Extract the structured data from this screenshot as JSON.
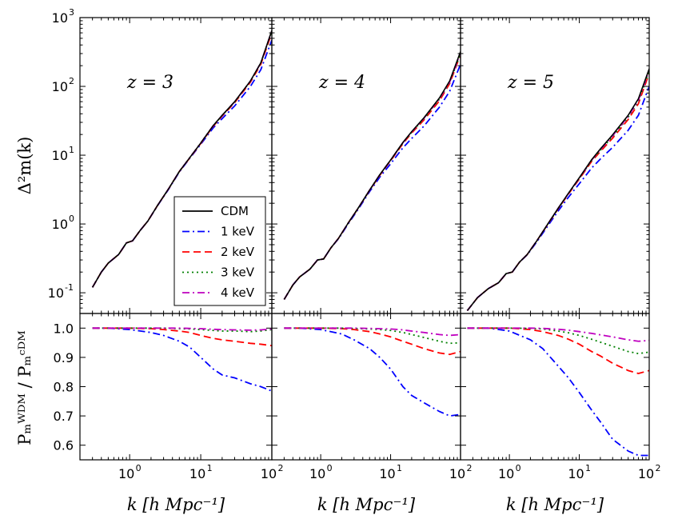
{
  "chart_data": {
    "type": "line",
    "legend_placement": "lower-right of first panel",
    "xlabel": "k [h Mpc⁻¹]",
    "xscale": "log",
    "xlim": [
      0.2,
      100
    ],
    "x_ticks": [
      {
        "value": 1,
        "base": "10",
        "exp": "0"
      },
      {
        "value": 10,
        "base": "10",
        "exp": "1"
      },
      {
        "value": 100,
        "base": "10",
        "exp": "2"
      }
    ],
    "top_ylabel": "Δ²m(k)",
    "top_yscale": "log",
    "top_ylim": [
      0.05,
      1000
    ],
    "top_y_ticks": [
      {
        "value": 0.1,
        "base": "10",
        "exp": "-1"
      },
      {
        "value": 1,
        "base": "10",
        "exp": "0"
      },
      {
        "value": 10,
        "base": "10",
        "exp": "1"
      },
      {
        "value": 100,
        "base": "10",
        "exp": "2"
      },
      {
        "value": 1000,
        "base": "10",
        "exp": "3"
      }
    ],
    "bottom_ylabel": "Pₘᵂᴰᴹ / Pₘᶜᴰᴹ",
    "bottom_ylim": [
      0.55,
      1.05
    ],
    "bottom_y_ticks": [
      "0.6",
      "0.7",
      "0.8",
      "0.9",
      "1.0"
    ],
    "series_styles": [
      {
        "name": "CDM",
        "color": "#000000",
        "dash": "solid"
      },
      {
        "name": "1 keV",
        "color": "#0000ff",
        "dash": "dashdot"
      },
      {
        "name": "2 keV",
        "color": "#ff0000",
        "dash": "dashed"
      },
      {
        "name": "3 keV",
        "color": "#008000",
        "dash": "dotted"
      },
      {
        "name": "4 keV",
        "color": "#bf00bf",
        "dash": "dashdot"
      }
    ],
    "panels": [
      {
        "label": "z = 3",
        "power": {
          "x": [
            0.3,
            0.4,
            0.5,
            0.7,
            0.9,
            1.1,
            1.4,
            1.8,
            2.5,
            3.5,
            5,
            7,
            10,
            15,
            20,
            30,
            50,
            70,
            100
          ],
          "series": [
            {
              "name": "CDM",
              "values": [
                0.12,
                0.2,
                0.27,
                0.36,
                0.53,
                0.57,
                0.8,
                1.1,
                1.9,
                3.2,
                5.8,
                9.2,
                15,
                27,
                38,
                60,
                120,
                220,
                650
              ]
            },
            {
              "name": "1 keV",
              "values": [
                0.12,
                0.2,
                0.27,
                0.36,
                0.53,
                0.57,
                0.8,
                1.1,
                1.88,
                3.15,
                5.7,
                9.0,
                14.4,
                25,
                34,
                52,
                100,
                175,
                470
              ]
            },
            {
              "name": "2 keV",
              "values": [
                0.12,
                0.2,
                0.27,
                0.36,
                0.53,
                0.57,
                0.8,
                1.1,
                1.9,
                3.2,
                5.8,
                9.1,
                14.8,
                26.4,
                37,
                58,
                115,
                210,
                600
              ]
            },
            {
              "name": "3 keV",
              "values": [
                0.12,
                0.2,
                0.27,
                0.36,
                0.53,
                0.57,
                0.8,
                1.1,
                1.9,
                3.2,
                5.8,
                9.2,
                15,
                26.8,
                37.7,
                59.4,
                119,
                218,
                640
              ]
            },
            {
              "name": "4 keV",
              "values": [
                0.12,
                0.2,
                0.27,
                0.36,
                0.53,
                0.57,
                0.8,
                1.1,
                1.9,
                3.2,
                5.8,
                9.2,
                15,
                26.9,
                37.8,
                59.7,
                119.5,
                219,
                645
              ]
            }
          ]
        },
        "ratio": {
          "x": [
            0.3,
            0.5,
            1,
            2,
            3,
            5,
            7,
            10,
            15,
            20,
            30,
            50,
            70,
            100
          ],
          "series": [
            {
              "name": "1 keV",
              "values": [
                1.0,
                1.0,
                0.995,
                0.985,
                0.975,
                0.955,
                0.935,
                0.9,
                0.86,
                0.84,
                0.83,
                0.81,
                0.8,
                0.785
              ]
            },
            {
              "name": "2 keV",
              "values": [
                1.0,
                1.0,
                1.0,
                0.998,
                0.995,
                0.99,
                0.985,
                0.975,
                0.965,
                0.96,
                0.955,
                0.948,
                0.945,
                0.94
              ]
            },
            {
              "name": "3 keV",
              "values": [
                1.0,
                1.0,
                1.0,
                1.0,
                1.0,
                0.998,
                0.997,
                0.995,
                0.992,
                0.99,
                0.99,
                0.988,
                0.99,
                0.995
              ]
            },
            {
              "name": "4 keV",
              "values": [
                1.0,
                1.0,
                1.0,
                1.0,
                1.0,
                1.0,
                0.999,
                0.998,
                0.996,
                0.995,
                0.994,
                0.993,
                0.994,
                0.997
              ]
            }
          ]
        }
      },
      {
        "label": "z = 4",
        "power": {
          "x": [
            0.3,
            0.4,
            0.5,
            0.7,
            0.9,
            1.1,
            1.4,
            1.8,
            2.5,
            3.5,
            5,
            7,
            10,
            15,
            20,
            30,
            50,
            70,
            100
          ],
          "series": [
            {
              "name": "CDM",
              "values": [
                0.08,
                0.13,
                0.17,
                0.22,
                0.3,
                0.31,
                0.45,
                0.62,
                1.05,
                1.75,
                3.1,
                5.2,
                8.5,
                15.3,
                22,
                35,
                68,
                120,
                320
              ]
            },
            {
              "name": "1 keV",
              "values": [
                0.08,
                0.13,
                0.17,
                0.22,
                0.3,
                0.31,
                0.45,
                0.61,
                1.02,
                1.68,
                2.95,
                4.8,
                7.5,
                12.8,
                17.5,
                26.5,
                50,
                85,
                210
              ]
            },
            {
              "name": "2 keV",
              "values": [
                0.08,
                0.13,
                0.17,
                0.22,
                0.3,
                0.31,
                0.45,
                0.62,
                1.05,
                1.74,
                3.08,
                5.1,
                8.3,
                14.7,
                21,
                32.5,
                62,
                110,
                290
              ]
            },
            {
              "name": "3 keV",
              "values": [
                0.08,
                0.13,
                0.17,
                0.22,
                0.3,
                0.31,
                0.45,
                0.62,
                1.05,
                1.75,
                3.1,
                5.18,
                8.44,
                15.1,
                21.6,
                34,
                65.5,
                114,
                300
              ]
            },
            {
              "name": "4 keV",
              "values": [
                0.08,
                0.13,
                0.17,
                0.22,
                0.3,
                0.31,
                0.45,
                0.62,
                1.05,
                1.75,
                3.1,
                5.19,
                8.47,
                15.2,
                21.8,
                34.5,
                66.5,
                116,
                308
              ]
            }
          ]
        },
        "ratio": {
          "x": [
            0.3,
            0.5,
            1,
            2,
            3,
            5,
            7,
            10,
            15,
            20,
            30,
            50,
            70,
            100
          ],
          "series": [
            {
              "name": "1 keV",
              "values": [
                1.0,
                1.0,
                0.995,
                0.98,
                0.96,
                0.93,
                0.9,
                0.86,
                0.8,
                0.77,
                0.745,
                0.715,
                0.7,
                0.705
              ]
            },
            {
              "name": "2 keV",
              "values": [
                1.0,
                1.0,
                1.0,
                0.998,
                0.995,
                0.988,
                0.98,
                0.97,
                0.955,
                0.945,
                0.93,
                0.915,
                0.91,
                0.92
              ]
            },
            {
              "name": "3 keV",
              "values": [
                1.0,
                1.0,
                1.0,
                1.0,
                0.999,
                0.997,
                0.995,
                0.992,
                0.985,
                0.978,
                0.968,
                0.955,
                0.948,
                0.95
              ]
            },
            {
              "name": "4 keV",
              "values": [
                1.0,
                1.0,
                1.0,
                1.0,
                1.0,
                0.999,
                0.998,
                0.997,
                0.994,
                0.99,
                0.985,
                0.978,
                0.975,
                0.978
              ]
            }
          ]
        }
      },
      {
        "label": "z = 5",
        "power": {
          "x": [
            0.25,
            0.35,
            0.5,
            0.7,
            0.9,
            1.1,
            1.4,
            1.8,
            2.5,
            3.5,
            5,
            7,
            10,
            15,
            20,
            30,
            50,
            70,
            100
          ],
          "series": [
            {
              "name": "CDM",
              "values": [
                0.055,
                0.085,
                0.115,
                0.14,
                0.19,
                0.2,
                0.28,
                0.36,
                0.58,
                0.98,
                1.7,
                2.8,
                4.7,
                8.6,
                12.3,
                19.8,
                38,
                66,
                180
              ]
            },
            {
              "name": "1 keV",
              "values": [
                0.055,
                0.085,
                0.115,
                0.14,
                0.19,
                0.2,
                0.28,
                0.355,
                0.56,
                0.92,
                1.55,
                2.45,
                3.85,
                6.5,
                8.8,
                13,
                23,
                38,
                100
              ]
            },
            {
              "name": "2 keV",
              "values": [
                0.055,
                0.085,
                0.115,
                0.14,
                0.19,
                0.2,
                0.28,
                0.36,
                0.58,
                0.97,
                1.67,
                2.73,
                4.5,
                8.1,
                11.3,
                17.7,
                33,
                56,
                155
              ]
            },
            {
              "name": "3 keV",
              "values": [
                0.055,
                0.085,
                0.115,
                0.14,
                0.19,
                0.2,
                0.28,
                0.36,
                0.58,
                0.98,
                1.69,
                2.77,
                4.6,
                8.35,
                11.8,
                18.7,
                35.5,
                61,
                166
              ]
            },
            {
              "name": "4 keV",
              "values": [
                0.055,
                0.085,
                0.115,
                0.14,
                0.19,
                0.2,
                0.28,
                0.36,
                0.58,
                0.98,
                1.7,
                2.78,
                4.65,
                8.48,
                12.05,
                19.2,
                36.6,
                63,
                172
              ]
            }
          ]
        },
        "ratio": {
          "x": [
            0.25,
            0.5,
            1,
            2,
            3,
            5,
            7,
            10,
            15,
            20,
            30,
            50,
            70,
            100
          ],
          "series": [
            {
              "name": "1 keV",
              "values": [
                1.0,
                1.0,
                0.99,
                0.96,
                0.93,
                0.87,
                0.83,
                0.78,
                0.72,
                0.68,
                0.62,
                0.58,
                0.565,
                0.565
              ]
            },
            {
              "name": "2 keV",
              "values": [
                1.0,
                1.0,
                1.0,
                0.995,
                0.988,
                0.975,
                0.962,
                0.945,
                0.92,
                0.905,
                0.88,
                0.855,
                0.845,
                0.855
              ]
            },
            {
              "name": "3 keV",
              "values": [
                1.0,
                1.0,
                1.0,
                0.999,
                0.997,
                0.99,
                0.984,
                0.975,
                0.962,
                0.952,
                0.938,
                0.92,
                0.913,
                0.918
              ]
            },
            {
              "name": "4 keV",
              "values": [
                1.0,
                1.0,
                1.0,
                1.0,
                0.999,
                0.996,
                0.993,
                0.988,
                0.982,
                0.977,
                0.97,
                0.96,
                0.955,
                0.958
              ]
            }
          ]
        }
      }
    ]
  }
}
